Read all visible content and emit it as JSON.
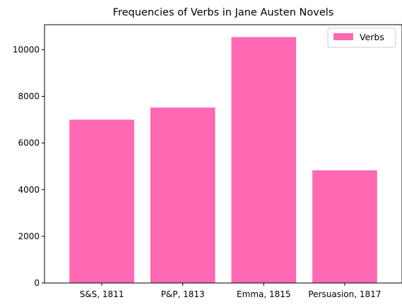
{
  "chart_data": {
    "type": "bar",
    "title": "Frequencies of Verbs in Jane Austen Novels",
    "xlabel": "",
    "ylabel": "",
    "categories": [
      "S&S, 1811",
      "P&P, 1813",
      "Emma, 1815",
      "Persuasion, 1817"
    ],
    "series": [
      {
        "name": "Verbs",
        "values": [
          7000,
          7520,
          10540,
          4830
        ],
        "color": "#ff69b4"
      }
    ],
    "ylim": [
      0,
      11070
    ],
    "yticks": [
      0,
      2000,
      4000,
      6000,
      8000,
      10000
    ],
    "grid": false,
    "legend": "top-right"
  }
}
